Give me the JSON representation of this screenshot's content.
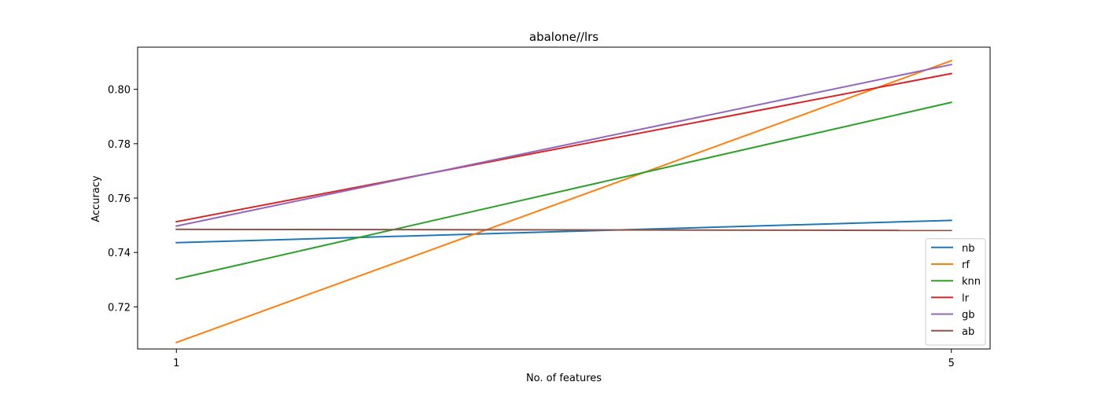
{
  "chart_data": {
    "type": "line",
    "title": "abalone//lrs",
    "xlabel": "No. of features",
    "ylabel": "Accuracy",
    "x": [
      1,
      5
    ],
    "xticks": [
      "1",
      "5"
    ],
    "xlim": [
      0.8,
      5.2
    ],
    "ylim": [
      0.7045,
      0.8155
    ],
    "yticks": [
      0.72,
      0.74,
      0.76,
      0.78,
      0.8
    ],
    "ytick_labels": [
      "0.72",
      "0.74",
      "0.76",
      "0.78",
      "0.80"
    ],
    "grid": false,
    "legend_position": "lower-right",
    "series": [
      {
        "name": "nb",
        "color": "#1f77b4",
        "values": [
          0.7436,
          0.7518
        ]
      },
      {
        "name": "rf",
        "color": "#ff7f0e",
        "values": [
          0.7069,
          0.8105
        ]
      },
      {
        "name": "knn",
        "color": "#2ca02c",
        "values": [
          0.7302,
          0.7952
        ]
      },
      {
        "name": "lr",
        "color": "#d62728",
        "values": [
          0.7513,
          0.8058
        ]
      },
      {
        "name": "gb",
        "color": "#9467bd",
        "values": [
          0.7497,
          0.8091
        ]
      },
      {
        "name": "ab",
        "color": "#8c564b",
        "values": [
          0.7485,
          0.7481
        ]
      }
    ]
  }
}
